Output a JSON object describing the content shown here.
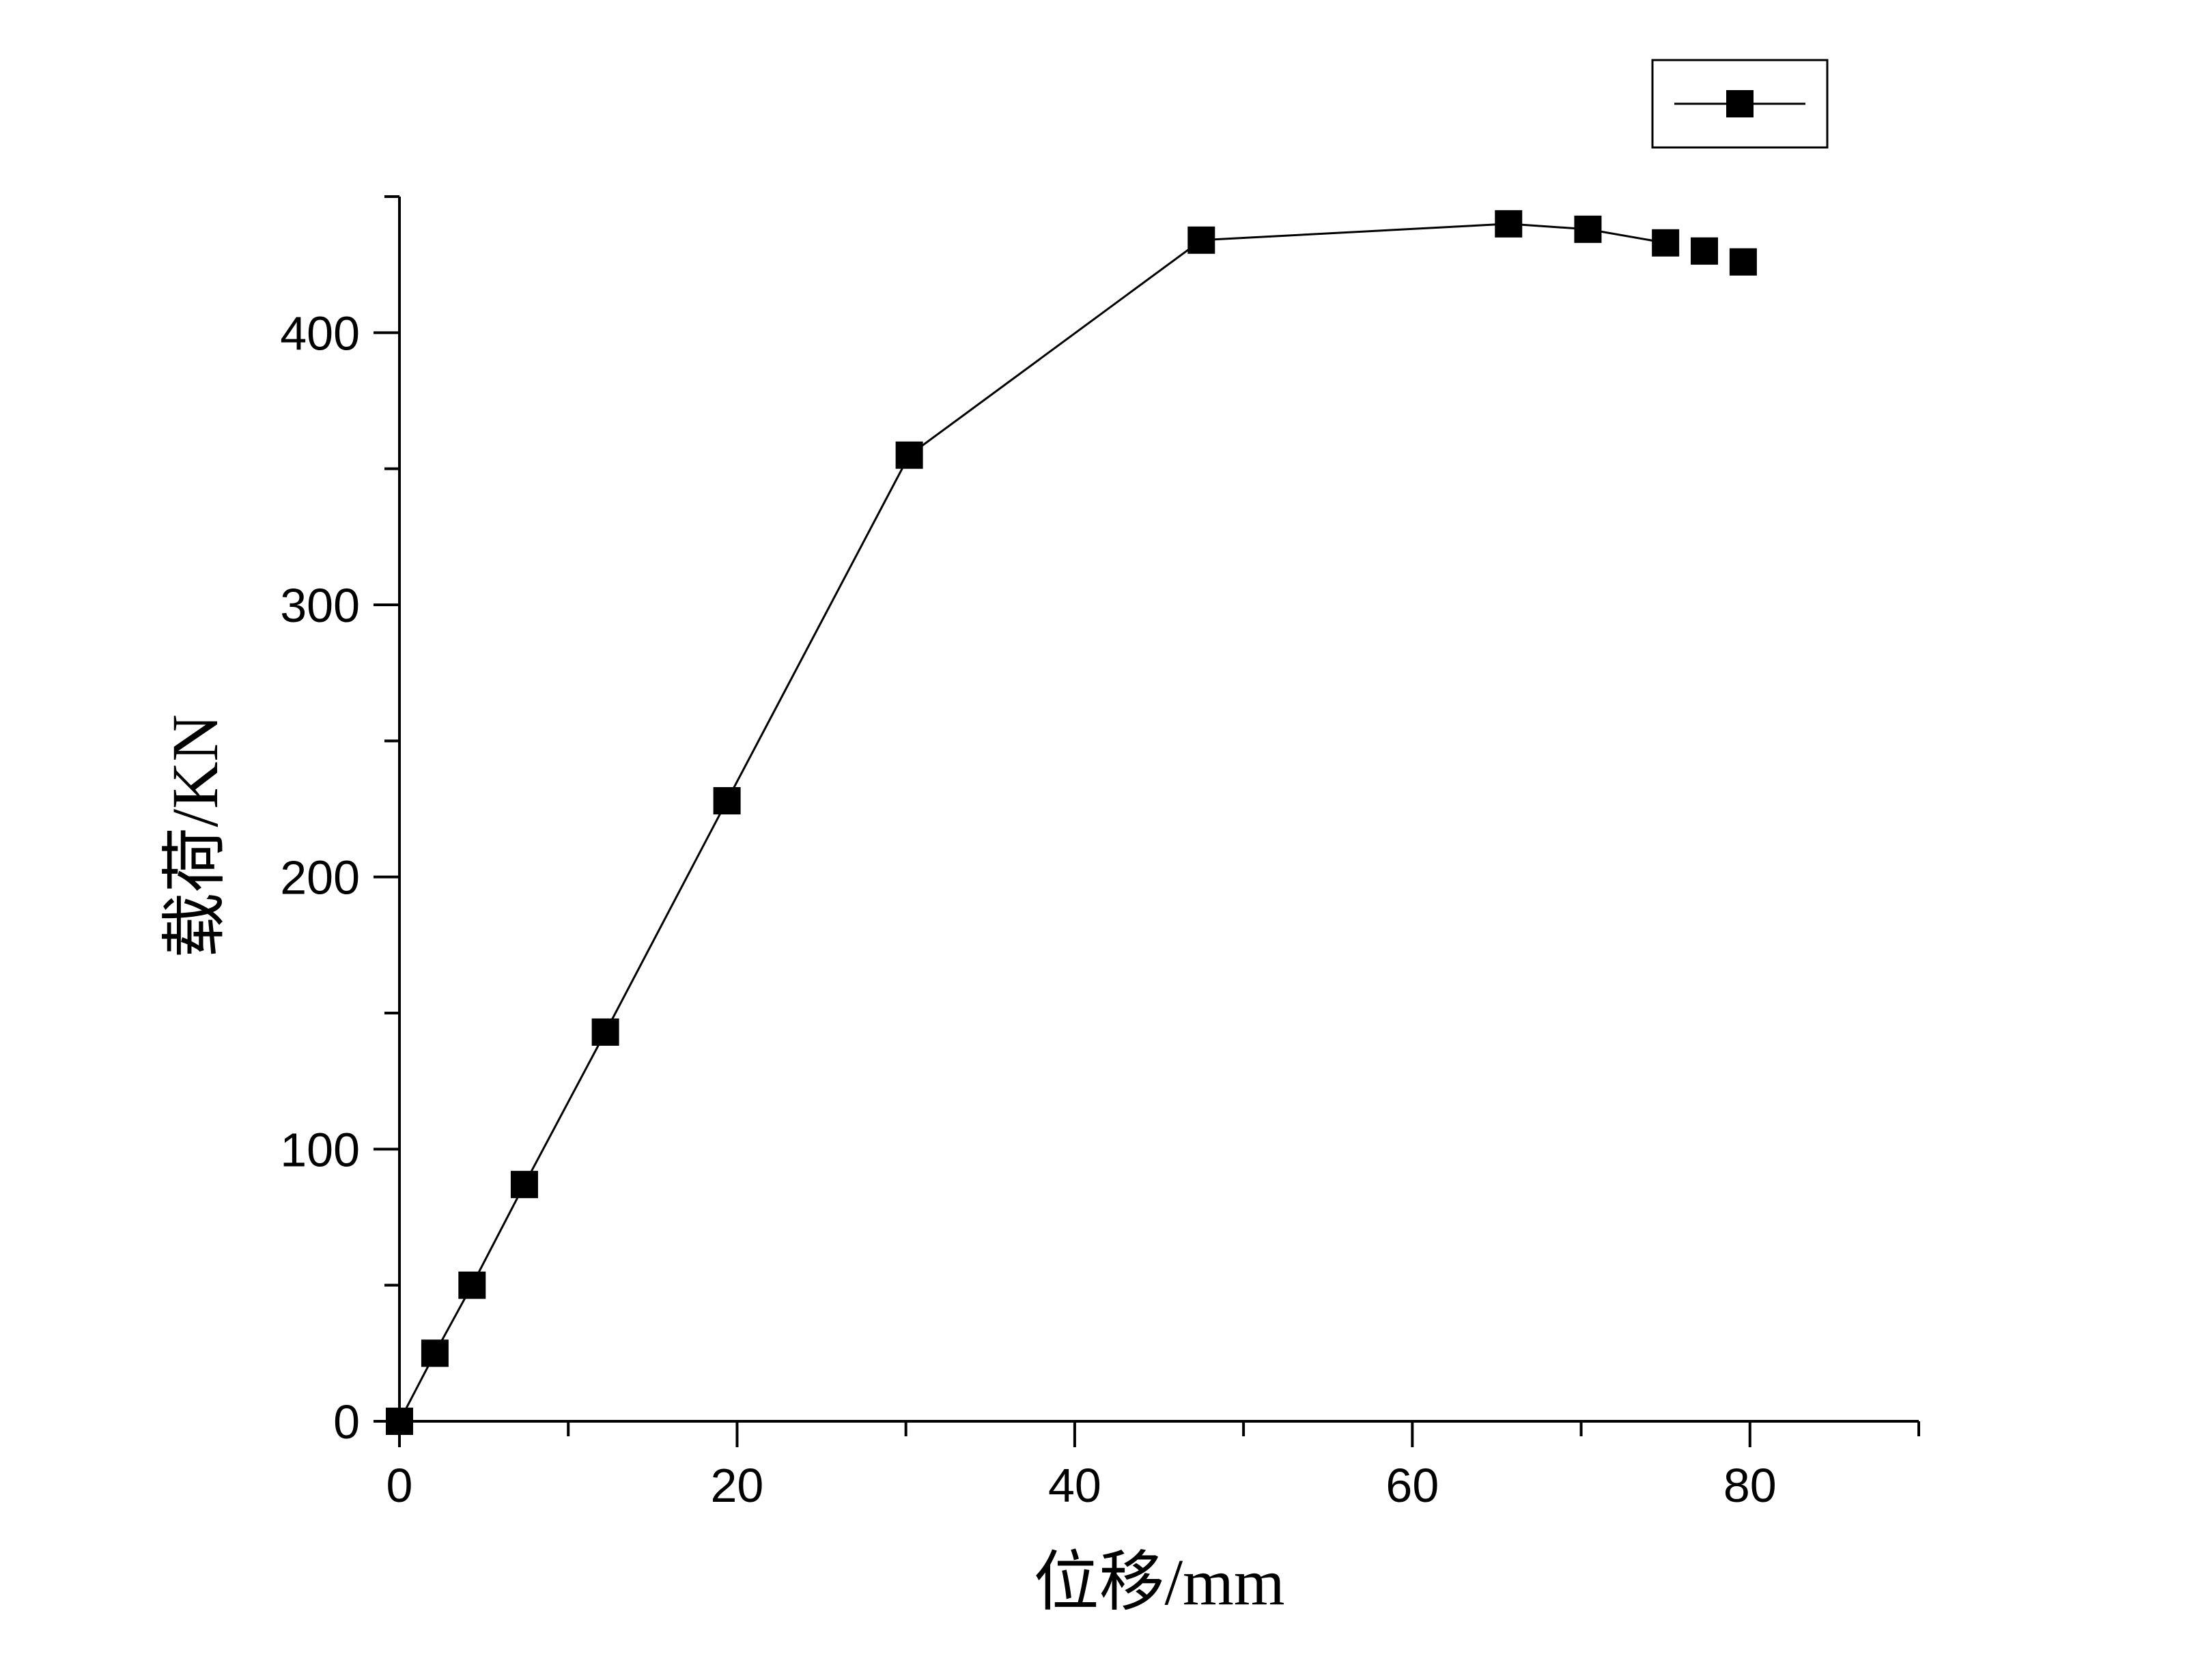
{
  "chart_data": {
    "type": "line",
    "xlabel": "位移/mm",
    "ylabel": "载荷/KN",
    "xlim": [
      0,
      90
    ],
    "ylim": [
      0,
      450
    ],
    "x_major_ticks": [
      0,
      20,
      40,
      60,
      80
    ],
    "x_minor_ticks": [
      10,
      30,
      50,
      70,
      90
    ],
    "y_major_ticks": [
      0,
      100,
      200,
      300,
      400
    ],
    "y_minor_ticks": [
      50,
      150,
      250,
      350,
      450
    ],
    "x_tick_labels": [
      "0",
      "20",
      "40",
      "60",
      "80"
    ],
    "y_tick_labels": [
      "0",
      "100",
      "200",
      "300",
      "400"
    ],
    "grid": false,
    "legend": {
      "placement": "top-right",
      "entries": [
        ""
      ]
    },
    "colors": {
      "line": "#000000",
      "marker": "#000000",
      "axis": "#000000"
    },
    "series": [
      {
        "marker": "square",
        "points": [
          {
            "x": 0.0,
            "y": 0
          },
          {
            "x": 2.1,
            "y": 25
          },
          {
            "x": 4.3,
            "y": 50
          },
          {
            "x": 7.4,
            "y": 87
          },
          {
            "x": 12.2,
            "y": 143
          },
          {
            "x": 19.4,
            "y": 228
          },
          {
            "x": 30.2,
            "y": 355
          },
          {
            "x": 47.5,
            "y": 434
          },
          {
            "x": 65.7,
            "y": 440
          },
          {
            "x": 70.4,
            "y": 438
          },
          {
            "x": 75.0,
            "y": 433
          },
          {
            "x": 77.3,
            "y": 430
          },
          {
            "x": 79.6,
            "y": 426
          }
        ],
        "line_segments": [
          [
            0,
            1
          ],
          [
            1,
            2
          ],
          [
            2,
            3
          ],
          [
            3,
            4
          ],
          [
            4,
            5
          ],
          [
            5,
            6
          ],
          [
            6,
            7
          ],
          [
            7,
            8
          ],
          [
            8,
            9
          ],
          [
            9,
            10
          ]
        ]
      }
    ]
  }
}
